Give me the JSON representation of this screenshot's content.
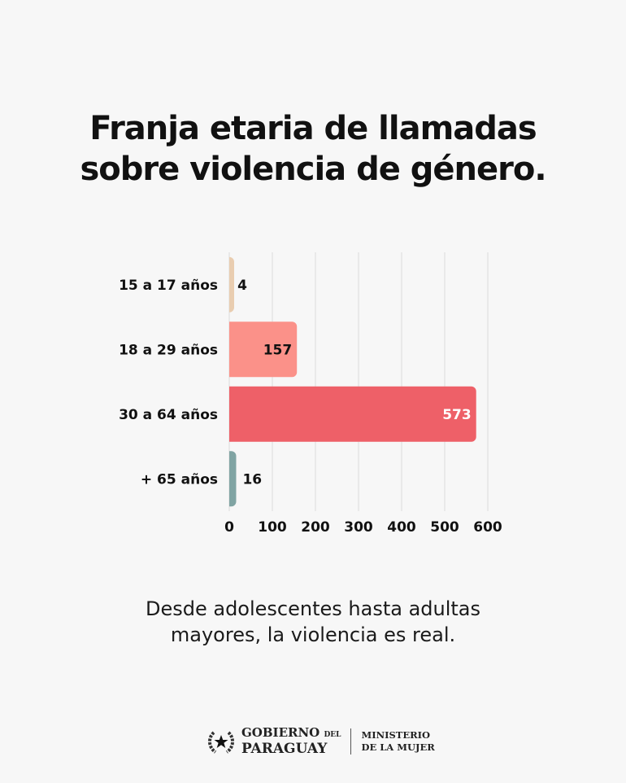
{
  "title_lines": [
    "Franja etaria de llamadas",
    "sobre violencia de género."
  ],
  "caption_lines": [
    "Desde adolescentes hasta adultas",
    "mayores, la violencia es real."
  ],
  "footer": {
    "gobierno_line1": "GOBIERNO",
    "gobierno_del": "DEL",
    "gobierno_line2": "PARAGUAY",
    "ministerio_line1": "MINISTERIO",
    "ministerio_line2": "DE LA MUJER",
    "emblem_icon": "star-wreath-emblem-icon"
  },
  "chart_data": {
    "type": "bar",
    "orientation": "horizontal",
    "categories": [
      "15 a 17 años",
      "18 a 29 años",
      "30 a 64 años",
      "+ 65 años"
    ],
    "values": [
      4,
      157,
      573,
      16
    ],
    "colors": [
      "#e9cdb0",
      "#fb9189",
      "#ee6068",
      "#80a4a3"
    ],
    "label_colors": [
      "#111111",
      "#111111",
      "#ffffff",
      "#111111"
    ],
    "xlim": [
      0,
      600
    ],
    "xticks": [
      0,
      100,
      200,
      300,
      400,
      500,
      600
    ],
    "grid": true
  }
}
